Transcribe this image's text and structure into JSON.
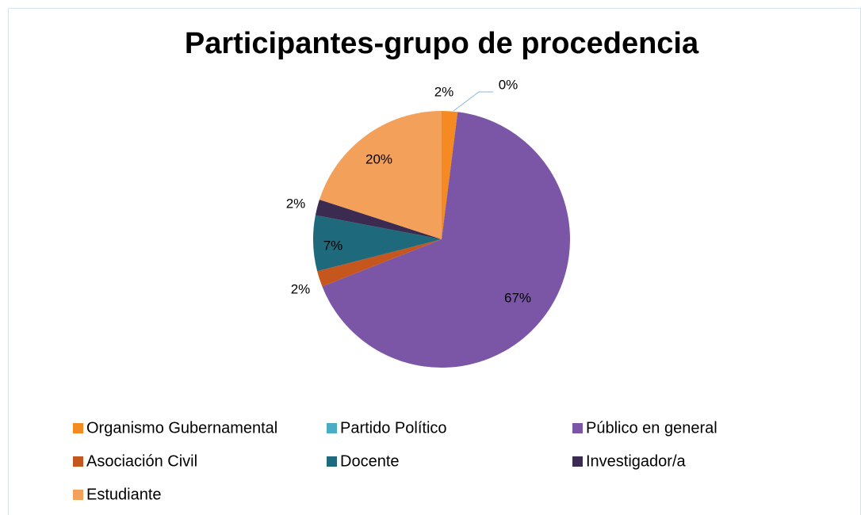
{
  "chart_data": {
    "type": "pie",
    "title": "Participantes-grupo de procedencia",
    "categories": [
      "Organismo Gubernamental",
      "Partido Político",
      "Público en general",
      "Asociación Civil",
      "Docente",
      "Investigador/a",
      "Estudiante"
    ],
    "values": [
      2,
      0,
      67,
      2,
      7,
      2,
      20
    ],
    "value_labels": [
      "2%",
      "0%",
      "67%",
      "2%",
      "7%",
      "2%",
      "20%"
    ],
    "colors": [
      "#f58a23",
      "#4bacc6",
      "#7b55a6",
      "#c4561e",
      "#1e6a7c",
      "#3b2b50",
      "#f2a05a"
    ]
  }
}
